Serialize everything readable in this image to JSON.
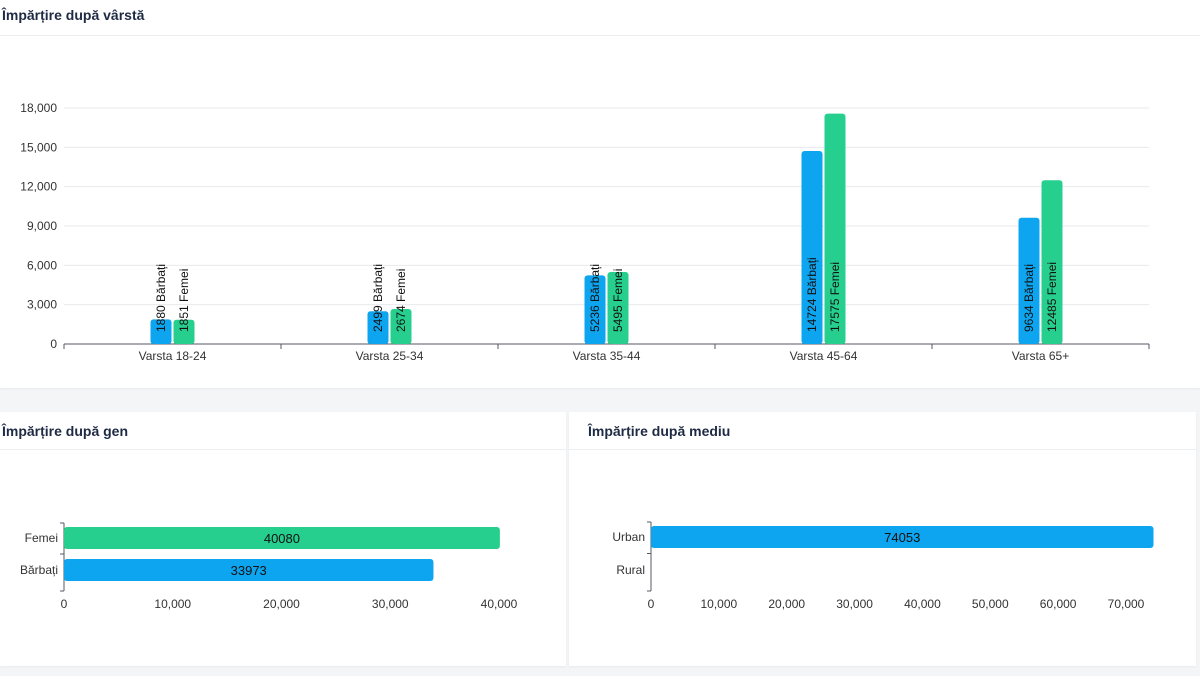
{
  "colors": {
    "male": "#0ea5f0",
    "female": "#26cf8e",
    "grid": "#e8eaee",
    "axis": "#555a66"
  },
  "charts": {
    "age": {
      "title": "Împărțire după vârstă",
      "chart_data": {
        "type": "bar",
        "categories": [
          "Varsta 18-24",
          "Varsta 25-34",
          "Varsta 35-44",
          "Varsta 45-64",
          "Varsta 65+"
        ],
        "series": [
          {
            "values": [
              1880,
              2499,
              5236,
              14724,
              9634
            ],
            "label_suffix": "Bărbați"
          },
          {
            "values": [
              1851,
              2674,
              5495,
              17575,
              12485
            ],
            "label_suffix": "Femei"
          }
        ],
        "yticks": [
          "0",
          "3,000",
          "6,000",
          "9,000",
          "12,000",
          "15,000",
          "18,000"
        ],
        "ylim": [
          0,
          18000
        ],
        "data_labels": [
          [
            "1880 Bărbați",
            "1851 Femei"
          ],
          [
            "2499 Bărbați",
            "2674 Femei"
          ],
          [
            "5236 Bărbați",
            "5495 Femei"
          ],
          [
            "14724 Bărbați",
            "17575 Femei"
          ],
          [
            "9634 Bărbați",
            "12485 Femei"
          ]
        ],
        "grid": true
      }
    },
    "gender": {
      "title": "Împărțire după gen",
      "chart_data": {
        "type": "bar",
        "orientation": "horizontal",
        "categories": [
          "Femei",
          "Bărbați"
        ],
        "values": [
          40080,
          33973
        ],
        "value_labels": [
          "40080",
          "33973"
        ],
        "xticks": [
          "0",
          "10,000",
          "20,000",
          "30,000",
          "40,000"
        ],
        "xlim": [
          0,
          40000
        ]
      }
    },
    "environment": {
      "title": "Împărțire după mediu",
      "chart_data": {
        "type": "bar",
        "orientation": "horizontal",
        "categories": [
          "Urban",
          "Rural"
        ],
        "values": [
          74053,
          0
        ],
        "value_labels": [
          "74053",
          ""
        ],
        "xticks": [
          "0",
          "10,000",
          "20,000",
          "30,000",
          "40,000",
          "50,000",
          "60,000",
          "70,000"
        ],
        "xlim": [
          0,
          70000
        ]
      }
    }
  }
}
